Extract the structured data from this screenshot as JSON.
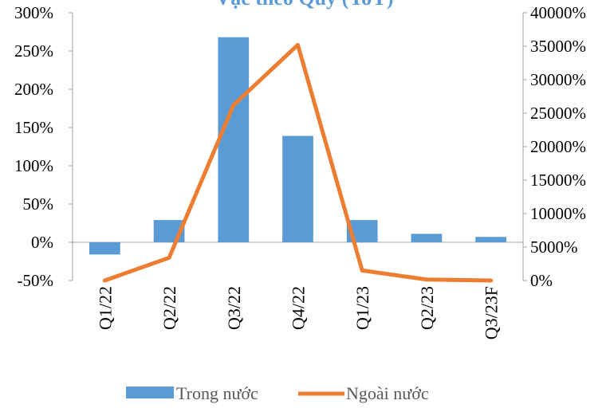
{
  "chart_data": {
    "type": "bar",
    "title": "Vặc theo Quý (YoY)",
    "categories": [
      "Q1/22",
      "Q2/22",
      "Q3/22",
      "Q4/22",
      "Q1/23",
      "Q2/23",
      "Q3/23F"
    ],
    "series": [
      {
        "name": "Trong nước",
        "type": "bar",
        "axis": "left",
        "color": "#5B9BD5",
        "values": [
          -0.16,
          0.29,
          2.68,
          1.39,
          0.29,
          0.11,
          0.07
        ]
      },
      {
        "name": "Ngoài nước",
        "type": "line",
        "axis": "right",
        "color": "#ED7D31",
        "values": [
          0,
          34,
          262,
          352,
          15,
          1.5,
          0
        ]
      }
    ],
    "left_axis": {
      "ylim": [
        -0.5,
        3.0
      ],
      "ticks": [
        -0.5,
        0,
        0.5,
        1.0,
        1.5,
        2.0,
        2.5,
        3.0
      ],
      "tick_labels": [
        "-50%",
        "0%",
        "50%",
        "100%",
        "150%",
        "200%",
        "250%",
        "300%"
      ]
    },
    "right_axis": {
      "ylim": [
        0,
        400
      ],
      "ticks": [
        0,
        50,
        100,
        150,
        200,
        250,
        300,
        350,
        400
      ],
      "tick_labels": [
        "0%",
        "5000%",
        "10000%",
        "15000%",
        "20000%",
        "25000%",
        "30000%",
        "35000%",
        "40000%"
      ]
    },
    "grid": false,
    "legend_position": "bottom"
  }
}
